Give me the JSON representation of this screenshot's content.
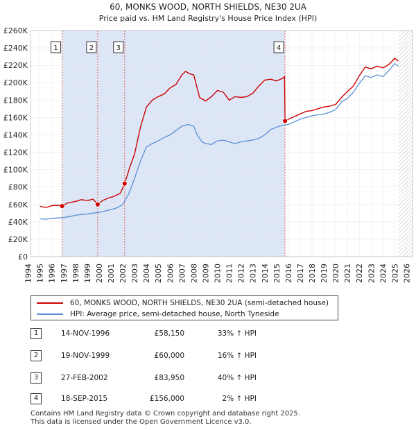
{
  "chart_data": {
    "type": "line",
    "title": "60, MONKS WOOD, NORTH SHIELDS, NE30 2UA",
    "subtitle": "Price paid vs. HM Land Registry's House Price Index (HPI)",
    "xlim": [
      1995,
      2026
    ],
    "ylim": [
      0,
      260000
    ],
    "x_ticks": [
      1994,
      1995,
      1996,
      1997,
      1998,
      1999,
      2000,
      2001,
      2002,
      2003,
      2004,
      2005,
      2006,
      2007,
      2008,
      2009,
      2010,
      2011,
      2012,
      2013,
      2014,
      2015,
      2016,
      2017,
      2018,
      2019,
      2020,
      2021,
      2022,
      2023,
      2024,
      2025,
      2026
    ],
    "y_ticks": [
      0,
      20000,
      40000,
      60000,
      80000,
      100000,
      120000,
      140000,
      160000,
      180000,
      200000,
      220000,
      240000,
      260000
    ],
    "y_tick_labels": [
      "£0",
      "£20K",
      "£40K",
      "£60K",
      "£80K",
      "£100K",
      "£120K",
      "£140K",
      "£160K",
      "£180K",
      "£200K",
      "£220K",
      "£240K",
      "£260K"
    ],
    "colors": {
      "property": "#cc0000",
      "hpi": "#5b8fd6",
      "shade": "#dce6f7",
      "marker_line": "#e06060"
    },
    "shaded_span": [
      1996.87,
      2015.72
    ],
    "hatched_from": 2025.3,
    "series": [
      {
        "name": "60, MONKS WOOD, NORTH SHIELDS, NE30 2UA (semi-detached house)",
        "x": [
          1995.0,
          1995.5,
          1996.0,
          1996.5,
          1996.87,
          1997.3,
          1998.0,
          1998.5,
          1999.0,
          1999.5,
          1999.88,
          2000.3,
          2000.8,
          2001.3,
          2001.8,
          2002.16,
          2002.6,
          2003.0,
          2003.5,
          2004.0,
          2004.5,
          2005.0,
          2005.5,
          2006.0,
          2006.5,
          2007.0,
          2007.3,
          2007.7,
          2008.0,
          2008.5,
          2009.0,
          2009.5,
          2010.0,
          2010.5,
          2011.0,
          2011.5,
          2012.0,
          2012.5,
          2013.0,
          2013.5,
          2014.0,
          2014.5,
          2015.0,
          2015.5,
          2015.68,
          2015.72,
          2016.0,
          2016.5,
          2017.0,
          2017.5,
          2018.0,
          2018.5,
          2019.0,
          2019.5,
          2020.0,
          2020.5,
          2021.0,
          2021.5,
          2022.0,
          2022.5,
          2023.0,
          2023.5,
          2024.0,
          2024.5,
          2025.0,
          2025.3
        ],
        "values": [
          58000,
          56500,
          58500,
          59000,
          58150,
          61500,
          63500,
          65500,
          64500,
          66000,
          60000,
          64500,
          67500,
          69500,
          73000,
          83950,
          103000,
          118000,
          149000,
          172000,
          180000,
          184000,
          187000,
          194000,
          198000,
          209000,
          213000,
          210000,
          209000,
          183000,
          179000,
          184000,
          191000,
          189000,
          180000,
          184000,
          183000,
          184000,
          188000,
          196000,
          203000,
          204000,
          202000,
          205000,
          207000,
          156000,
          158000,
          161000,
          164000,
          167000,
          168000,
          170000,
          172000,
          173000,
          175000,
          183000,
          190000,
          196000,
          208000,
          218000,
          216000,
          219000,
          217000,
          221000,
          228000,
          225000
        ]
      },
      {
        "name": "HPI: Average price, semi-detached house, North Tyneside",
        "x": [
          1995.0,
          1995.5,
          1996.0,
          1996.5,
          1997.0,
          1997.5,
          1998.0,
          1998.5,
          1999.0,
          1999.5,
          2000.0,
          2000.5,
          2001.0,
          2001.5,
          2002.0,
          2002.5,
          2003.0,
          2003.5,
          2004.0,
          2004.5,
          2005.0,
          2005.5,
          2006.0,
          2006.5,
          2007.0,
          2007.5,
          2008.0,
          2008.3,
          2008.7,
          2009.0,
          2009.5,
          2010.0,
          2010.5,
          2011.0,
          2011.5,
          2012.0,
          2012.5,
          2013.0,
          2013.5,
          2014.0,
          2014.5,
          2015.0,
          2015.5,
          2016.0,
          2016.5,
          2017.0,
          2017.5,
          2018.0,
          2018.5,
          2019.0,
          2019.5,
          2020.0,
          2020.5,
          2021.0,
          2021.5,
          2022.0,
          2022.5,
          2023.0,
          2023.5,
          2024.0,
          2024.5,
          2025.0,
          2025.3
        ],
        "values": [
          43500,
          43000,
          44000,
          44500,
          45000,
          46000,
          47500,
          48500,
          49000,
          50000,
          51000,
          52500,
          54000,
          56000,
          60000,
          72000,
          90000,
          110000,
          126000,
          130000,
          133000,
          137000,
          140000,
          145000,
          150000,
          152000,
          150000,
          140000,
          132000,
          130000,
          129000,
          133000,
          134000,
          132000,
          130000,
          132000,
          133000,
          134000,
          136000,
          140000,
          146000,
          149000,
          151000,
          152000,
          155000,
          158000,
          160000,
          162000,
          163000,
          164000,
          166000,
          169000,
          178000,
          182000,
          189000,
          199000,
          208000,
          206000,
          209000,
          207000,
          214000,
          222000,
          219000
        ]
      }
    ],
    "sales": [
      {
        "label": "1",
        "x": 1996.87,
        "value": 58150
      },
      {
        "label": "2",
        "x": 1999.88,
        "value": 60000
      },
      {
        "label": "3",
        "x": 2002.16,
        "value": 83950
      },
      {
        "label": "4",
        "x": 2015.72,
        "value": 156000
      }
    ]
  },
  "legend": {
    "property": "60, MONKS WOOD, NORTH SHIELDS, NE30 2UA (semi-detached house)",
    "hpi": "HPI: Average price, semi-detached house, North Tyneside"
  },
  "sales_table": [
    {
      "num": "1",
      "date": "14-NOV-1996",
      "price": "£58,150",
      "hpi": "33% ↑ HPI"
    },
    {
      "num": "2",
      "date": "19-NOV-1999",
      "price": "£60,000",
      "hpi": "16% ↑ HPI"
    },
    {
      "num": "3",
      "date": "27-FEB-2002",
      "price": "£83,950",
      "hpi": "40% ↑ HPI"
    },
    {
      "num": "4",
      "date": "18-SEP-2015",
      "price": "£156,000",
      "hpi": "2% ↑ HPI"
    }
  ],
  "footer": {
    "line1": "Contains HM Land Registry data © Crown copyright and database right 2025.",
    "line2": "This data is licensed under the Open Government Licence v3.0."
  }
}
